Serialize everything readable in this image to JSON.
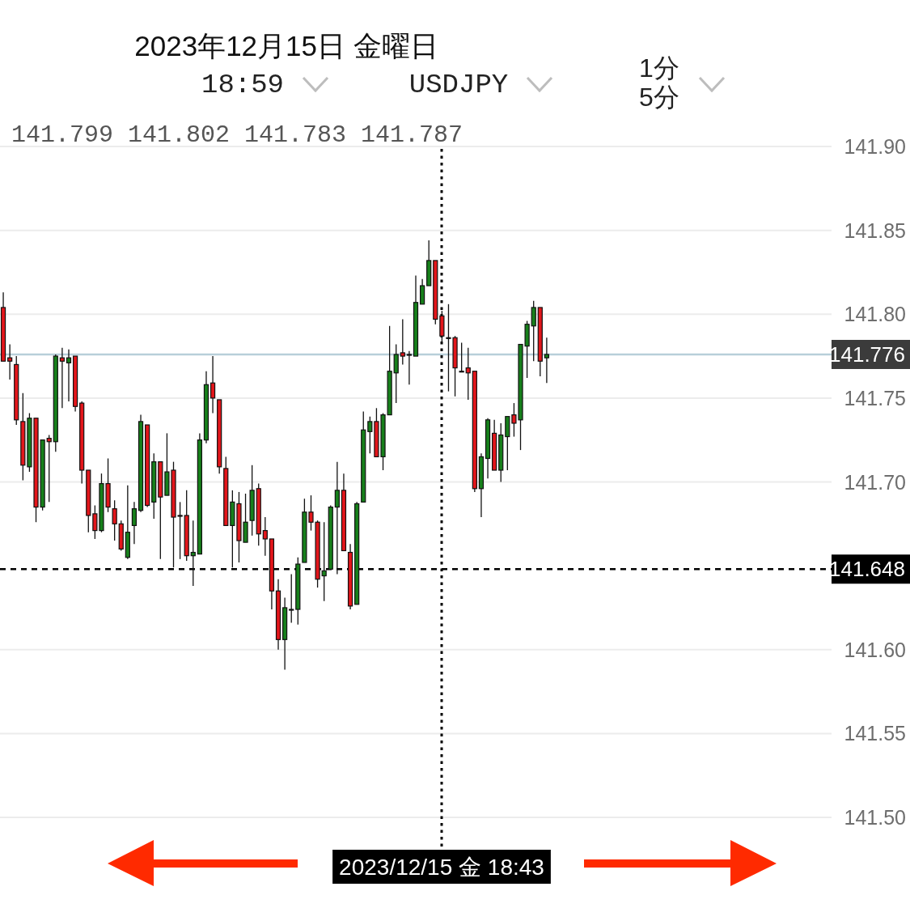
{
  "chart_data": {
    "type": "candlestick",
    "title": "2023年12月15日 金曜日",
    "annotations": [
      "18:59",
      "USDJPY",
      "1分",
      "5分",
      "141.799 141.802 141.783 141.787",
      "2023/12/15 金 18:43"
    ],
    "categories": [
      null,
      null,
      null,
      null,
      null,
      null,
      null,
      null,
      null,
      null,
      null,
      null,
      null,
      null,
      null,
      null,
      null,
      null,
      null,
      null,
      null,
      null,
      null,
      null,
      null,
      null,
      null,
      null,
      null,
      null,
      null,
      null,
      null,
      null,
      null,
      null,
      null,
      null,
      null,
      null,
      null,
      null,
      null,
      null,
      null,
      null,
      null,
      null,
      null,
      null,
      null,
      null,
      null,
      null,
      null,
      null,
      null,
      null,
      null,
      null,
      null,
      null,
      null,
      null,
      null,
      null,
      null,
      null,
      null,
      null,
      null,
      null,
      null,
      null,
      null,
      null,
      null,
      null,
      null,
      null,
      null,
      null,
      null,
      null,
      null,
      null,
      null,
      null,
      null,
      null,
      null,
      null,
      null,
      null,
      null,
      null,
      null,
      null,
      null,
      null,
      null,
      null,
      null,
      null,
      null,
      null,
      null,
      null,
      null,
      null,
      null,
      null,
      null,
      null,
      null,
      null,
      null,
      null,
      null,
      null,
      null,
      null,
      null,
      null,
      null,
      null,
      null
    ],
    "ohlc": [
      [
        141.804,
        141.813,
        141.772,
        141.772
      ],
      [
        141.774,
        141.782,
        141.761,
        141.772
      ],
      [
        141.77,
        141.775,
        141.734,
        141.737
      ],
      [
        141.736,
        141.753,
        141.701,
        141.71
      ],
      [
        141.709,
        141.741,
        141.706,
        141.738
      ],
      [
        141.738,
        141.738,
        141.676,
        141.685
      ],
      [
        141.685,
        141.725,
        141.683,
        141.725
      ],
      [
        141.726,
        141.728,
        141.688,
        141.724
      ],
      [
        141.724,
        141.776,
        141.718,
        141.775
      ],
      [
        141.774,
        141.78,
        141.744,
        141.772
      ],
      [
        141.771,
        141.779,
        141.748,
        141.774
      ],
      [
        141.775,
        141.775,
        141.742,
        141.745
      ],
      [
        141.747,
        141.748,
        141.699,
        141.707
      ],
      [
        141.707,
        141.707,
        141.67,
        141.68
      ],
      [
        141.681,
        141.686,
        141.666,
        141.671
      ],
      [
        141.671,
        141.705,
        141.67,
        141.699
      ],
      [
        141.699,
        141.714,
        141.682,
        141.685
      ],
      [
        141.684,
        141.689,
        141.665,
        141.675
      ],
      [
        141.675,
        141.677,
        141.659,
        141.66
      ],
      [
        141.655,
        141.698,
        141.654,
        141.67
      ],
      [
        141.674,
        141.688,
        141.663,
        141.684
      ],
      [
        141.683,
        141.74,
        141.682,
        141.736
      ],
      [
        141.734,
        141.734,
        141.685,
        141.686
      ],
      [
        141.688,
        141.717,
        141.678,
        141.712
      ],
      [
        141.712,
        141.712,
        141.654,
        141.691
      ],
      [
        141.692,
        141.729,
        141.692,
        141.706
      ],
      [
        141.707,
        141.712,
        141.649,
        141.679
      ],
      [
        141.68,
        141.688,
        141.654,
        141.68
      ],
      [
        141.68,
        141.695,
        141.653,
        141.656
      ],
      [
        141.656,
        141.677,
        141.638,
        141.658
      ],
      [
        141.657,
        141.729,
        141.657,
        141.725
      ],
      [
        141.725,
        141.766,
        141.723,
        141.758
      ],
      [
        141.759,
        141.775,
        141.741,
        141.75
      ],
      [
        141.749,
        141.749,
        141.705,
        141.709
      ],
      [
        141.708,
        141.715,
        141.674,
        141.674
      ],
      [
        141.674,
        141.695,
        141.649,
        141.688
      ],
      [
        141.687,
        141.694,
        141.652,
        141.665
      ],
      [
        141.664,
        141.693,
        141.664,
        141.676
      ],
      [
        141.677,
        141.71,
        141.668,
        141.695
      ],
      [
        141.696,
        141.699,
        141.662,
        141.669
      ],
      [
        141.671,
        141.679,
        141.656,
        141.666
      ],
      [
        141.666,
        141.666,
        141.624,
        141.635
      ],
      [
        141.635,
        141.642,
        141.6,
        141.606
      ],
      [
        141.606,
        141.631,
        141.588,
        141.625
      ],
      [
        141.624,
        141.645,
        141.616,
        141.624
      ],
      [
        141.624,
        141.655,
        141.615,
        141.651
      ],
      [
        141.652,
        141.69,
        141.652,
        141.682
      ],
      [
        141.682,
        141.692,
        141.671,
        141.676
      ],
      [
        141.676,
        141.677,
        141.637,
        141.642
      ],
      [
        141.644,
        141.676,
        141.629,
        141.647
      ],
      [
        141.648,
        141.686,
        141.648,
        141.685
      ],
      [
        141.685,
        141.712,
        141.645,
        141.695
      ],
      [
        141.695,
        141.705,
        141.659,
        141.659
      ],
      [
        141.658,
        141.663,
        141.624,
        141.626
      ],
      [
        141.627,
        141.688,
        141.627,
        141.687
      ],
      [
        141.688,
        141.742,
        141.688,
        141.731
      ],
      [
        141.73,
        141.739,
        141.717,
        141.736
      ],
      [
        141.736,
        141.744,
        141.715,
        141.715
      ],
      [
        141.715,
        141.741,
        141.707,
        141.74
      ],
      [
        141.74,
        141.793,
        141.74,
        141.766
      ],
      [
        141.765,
        141.782,
        141.747,
        141.776
      ],
      [
        141.777,
        141.797,
        141.77,
        141.775
      ],
      [
        141.776,
        141.778,
        141.758,
        141.776
      ],
      [
        141.775,
        141.823,
        141.775,
        141.807
      ],
      [
        141.806,
        141.821,
        141.806,
        141.817
      ],
      [
        141.817,
        141.844,
        141.817,
        141.832
      ],
      [
        141.832,
        141.832,
        141.794,
        141.797
      ],
      [
        141.799,
        141.802,
        141.783,
        141.787
      ],
      [
        141.786,
        141.806,
        141.754,
        141.786
      ],
      [
        141.786,
        141.787,
        141.751,
        141.768
      ],
      [
        141.766,
        141.783,
        141.766,
        141.766
      ],
      [
        141.768,
        141.78,
        141.749,
        141.765
      ],
      [
        141.766,
        141.766,
        141.694,
        141.696
      ],
      [
        141.696,
        141.717,
        141.679,
        141.715
      ],
      [
        141.714,
        141.738,
        141.702,
        141.737
      ],
      [
        141.729,
        141.737,
        141.707,
        141.707
      ],
      [
        141.707,
        141.735,
        141.7,
        141.728
      ],
      [
        141.727,
        141.739,
        141.707,
        141.739
      ],
      [
        141.74,
        141.747,
        141.727,
        141.735
      ],
      [
        141.737,
        141.782,
        141.719,
        141.782
      ],
      [
        141.781,
        141.796,
        141.762,
        141.794
      ],
      [
        141.793,
        141.808,
        141.772,
        141.804
      ],
      [
        141.804,
        141.804,
        141.763,
        141.772
      ],
      [
        141.774,
        141.786,
        141.759,
        141.776
      ],
      null,
      null,
      null,
      null,
      null,
      null,
      null,
      null,
      null,
      null,
      null,
      null,
      null,
      null,
      null,
      null,
      null,
      null,
      null,
      null,
      null,
      null,
      null,
      null,
      null,
      null,
      null,
      null,
      null,
      null,
      null,
      null,
      null,
      null,
      null,
      null,
      null,
      null,
      null,
      null,
      null,
      null,
      null
    ],
    "colors": [
      "#e3161b",
      "#e3161b",
      "#e3161b",
      "#e3161b",
      "#17801b",
      "#e3161b",
      "#17801b",
      "#e3161b",
      "#17801b",
      "#e3161b",
      "#17801b",
      "#e3161b",
      "#e3161b",
      "#e3161b",
      "#e3161b",
      "#17801b",
      "#e3161b",
      "#e3161b",
      "#e3161b",
      "#17801b",
      "#17801b",
      "#17801b",
      "#e3161b",
      "#17801b",
      "#e3161b",
      "#17801b",
      "#e3161b",
      "#000000",
      "#e3161b",
      "#17801b",
      "#17801b",
      "#17801b",
      "#e3161b",
      "#e3161b",
      "#e3161b",
      "#17801b",
      "#e3161b",
      "#17801b",
      "#17801b",
      "#e3161b",
      "#e3161b",
      "#e3161b",
      "#e3161b",
      "#17801b",
      "#000000",
      "#17801b",
      "#17801b",
      "#e3161b",
      "#e3161b",
      "#17801b",
      "#17801b",
      "#17801b",
      "#e3161b",
      "#e3161b",
      "#17801b",
      "#17801b",
      "#17801b",
      "#e3161b",
      "#17801b",
      "#17801b",
      "#17801b",
      "#e3161b",
      "#000000",
      "#17801b",
      "#17801b",
      "#17801b",
      "#e3161b",
      "#e3161b",
      "#000000",
      "#e3161b",
      "#000000",
      "#e3161b",
      "#e3161b",
      "#17801b",
      "#17801b",
      "#e3161b",
      "#17801b",
      "#17801b",
      "#e3161b",
      "#17801b",
      "#17801b",
      "#17801b",
      "#e3161b",
      "#17801b",
      null,
      null,
      null,
      null,
      null,
      null,
      null,
      null,
      null,
      null,
      null,
      null,
      null,
      null,
      null,
      null,
      null,
      null,
      null,
      null,
      null,
      null,
      null,
      null,
      null,
      null,
      null,
      null,
      null,
      null,
      null,
      null,
      null,
      null,
      null,
      null,
      null,
      null,
      null,
      null,
      null,
      null,
      null
    ],
    "ylim": [
      141.5,
      141.9
    ],
    "yticks": [
      {
        "value": 141.5,
        "label": "141.50"
      },
      {
        "value": 141.55,
        "label": "141.55"
      },
      {
        "value": 141.6,
        "label": "141.60"
      },
      {
        "value": 141.7,
        "label": "141.70"
      },
      {
        "value": 141.75,
        "label": "141.75"
      },
      {
        "value": 141.8,
        "label": "141.80"
      },
      {
        "value": 141.85,
        "label": "141.85"
      },
      {
        "value": 141.9,
        "label": "141.90"
      }
    ],
    "tick_labels": "y",
    "grid": "y",
    "ref_lines": [
      {
        "axis": "y",
        "value": 141.776,
        "label": "141.776",
        "color": "#b8cfd9",
        "line_style": "solid"
      },
      {
        "axis": "y",
        "value": 141.648,
        "label": "141.648",
        "color": "#000000",
        "line_style": "dashed"
      }
    ]
  }
}
